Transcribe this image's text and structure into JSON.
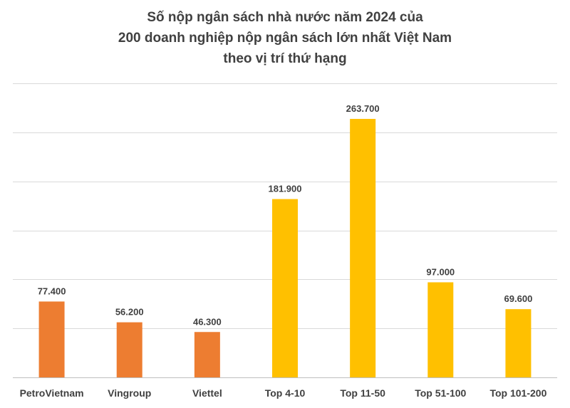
{
  "chart_data": {
    "type": "bar",
    "title_lines": [
      "Số nộp ngân sách nhà nước năm 2024 của",
      "200 doanh nghiệp nộp ngân sách lớn nhất Việt Nam",
      "theo vị trí thứ hạng"
    ],
    "categories": [
      "PetroVietnam",
      "Vingroup",
      "Viettel",
      "Top 4-10",
      "Top 11-50",
      "Top 51-100",
      "Top 101-200"
    ],
    "values": [
      77400,
      56200,
      46300,
      181900,
      263700,
      97000,
      69600
    ],
    "value_labels": [
      "77.400",
      "56.200",
      "46.300",
      "181.900",
      "263.700",
      "97.000",
      "69.600"
    ],
    "bar_colors": [
      "#ED7D31",
      "#ED7D31",
      "#ED7D31",
      "#FFC000",
      "#FFC000",
      "#FFC000",
      "#FFC000"
    ],
    "ylim": [
      0,
      300000
    ],
    "y_gridlines": [
      0,
      50000,
      100000,
      150000,
      200000,
      250000,
      300000
    ],
    "grid": true,
    "legend": "none",
    "xlabel": "",
    "ylabel": ""
  }
}
